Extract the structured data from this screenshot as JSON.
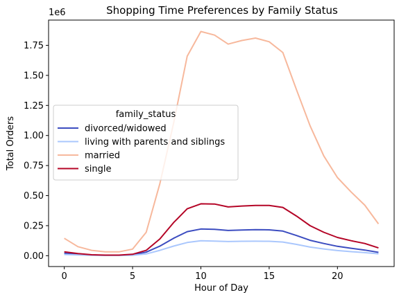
{
  "chart_data": {
    "type": "line",
    "title": "Shopping Time Preferences by Family Status",
    "xlabel": "Hour of Day",
    "ylabel": "Total Orders",
    "y_offset_label": "1e6",
    "xlim": [
      -1.15,
      24.15
    ],
    "ylim": [
      -0.09,
      1.96
    ],
    "x_ticks": [
      0,
      5,
      10,
      15,
      20
    ],
    "y_ticks": [
      0.0,
      0.25,
      0.5,
      0.75,
      1.0,
      1.25,
      1.5,
      1.75
    ],
    "y_tick_labels": [
      "0.00",
      "0.25",
      "0.50",
      "0.75",
      "1.00",
      "1.25",
      "1.50",
      "1.75"
    ],
    "grid": false,
    "legend": {
      "title": "family_status",
      "placement": "center-left"
    },
    "x": [
      0,
      1,
      2,
      3,
      4,
      5,
      6,
      7,
      8,
      9,
      10,
      11,
      12,
      13,
      14,
      15,
      16,
      17,
      18,
      19,
      20,
      21,
      22,
      23
    ],
    "series": [
      {
        "name": "divorced/widowed",
        "color": "#3b4cc0",
        "values": [
          0.02,
          0.012,
          0.006,
          0.004,
          0.004,
          0.008,
          0.03,
          0.08,
          0.145,
          0.2,
          0.222,
          0.22,
          0.21,
          0.214,
          0.217,
          0.215,
          0.205,
          0.168,
          0.128,
          0.102,
          0.078,
          0.062,
          0.047,
          0.028
        ]
      },
      {
        "name": "living with parents and siblings",
        "color": "#aac7fd",
        "values": [
          0.01,
          0.006,
          0.003,
          0.002,
          0.002,
          0.004,
          0.015,
          0.045,
          0.08,
          0.11,
          0.124,
          0.122,
          0.118,
          0.12,
          0.121,
          0.12,
          0.114,
          0.094,
          0.072,
          0.056,
          0.043,
          0.034,
          0.026,
          0.016
        ]
      },
      {
        "name": "married",
        "color": "#f7b89c",
        "values": [
          0.145,
          0.075,
          0.045,
          0.032,
          0.032,
          0.055,
          0.195,
          0.6,
          1.1,
          1.66,
          1.865,
          1.835,
          1.76,
          1.79,
          1.81,
          1.78,
          1.69,
          1.38,
          1.08,
          0.83,
          0.65,
          0.53,
          0.42,
          0.265
        ]
      },
      {
        "name": "single",
        "color": "#b40426",
        "values": [
          0.032,
          0.018,
          0.008,
          0.005,
          0.005,
          0.012,
          0.045,
          0.14,
          0.275,
          0.39,
          0.432,
          0.43,
          0.406,
          0.413,
          0.418,
          0.418,
          0.402,
          0.33,
          0.25,
          0.195,
          0.152,
          0.125,
          0.102,
          0.065
        ]
      }
    ]
  }
}
